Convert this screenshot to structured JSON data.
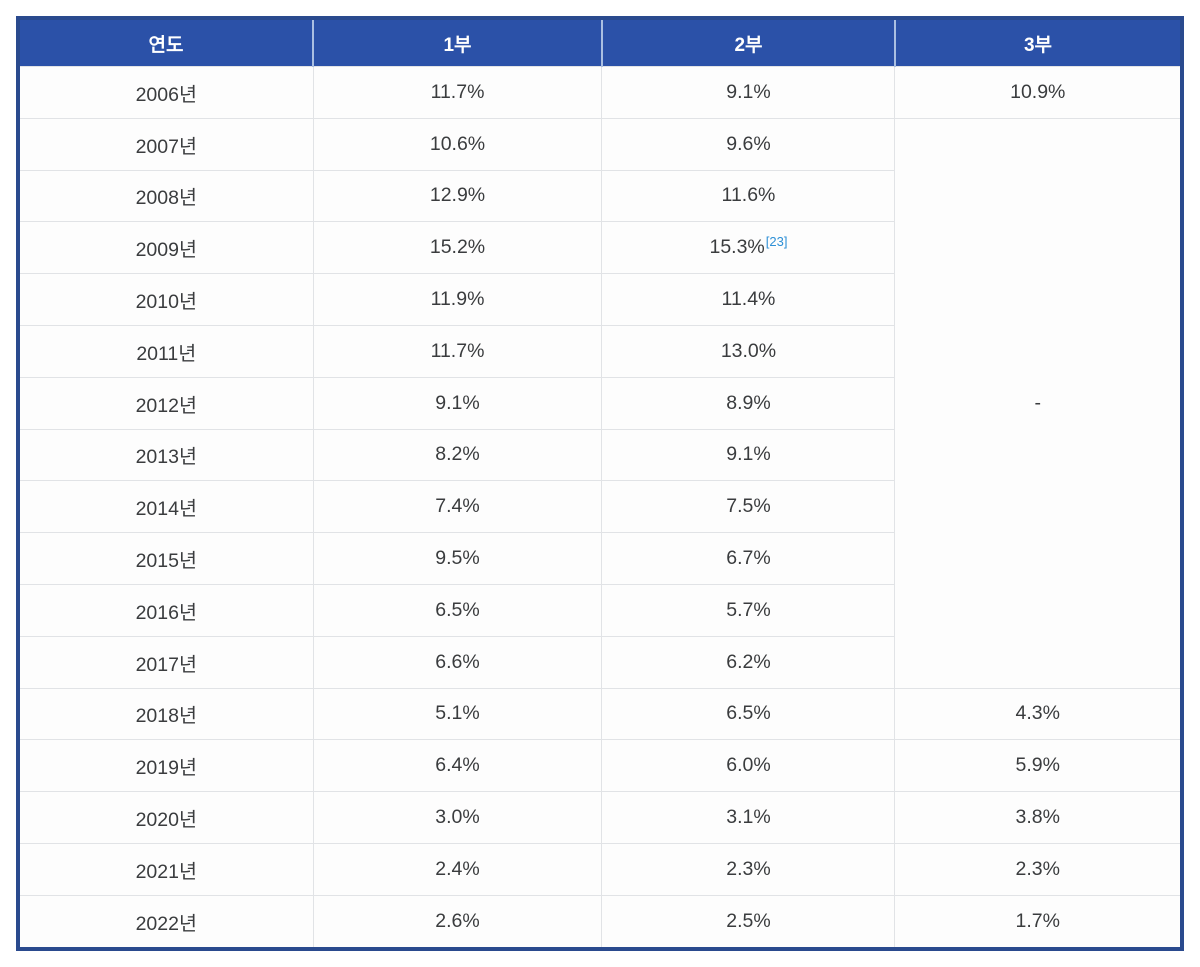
{
  "table": {
    "columns": [
      {
        "key": "year",
        "label": "연도"
      },
      {
        "key": "league1",
        "label": "1부"
      },
      {
        "key": "league2",
        "label": "2부"
      },
      {
        "key": "league3",
        "label": "3부"
      }
    ],
    "rows": [
      {
        "year": "2006년",
        "league1": "11.7%",
        "league2": "9.1%",
        "league3": "10.9%"
      },
      {
        "year": "2007년",
        "league1": "10.6%",
        "league2": "9.6%"
      },
      {
        "year": "2008년",
        "league1": "12.9%",
        "league2": "11.6%"
      },
      {
        "year": "2009년",
        "league1": "15.2%",
        "league2": "15.3%",
        "league2_footnote": "[23]"
      },
      {
        "year": "2010년",
        "league1": "11.9%",
        "league2": "11.4%"
      },
      {
        "year": "2011년",
        "league1": "11.7%",
        "league2": "13.0%"
      },
      {
        "year": "2012년",
        "league1": "9.1%",
        "league2": "8.9%"
      },
      {
        "year": "2013년",
        "league1": "8.2%",
        "league2": "9.1%"
      },
      {
        "year": "2014년",
        "league1": "7.4%",
        "league2": "7.5%"
      },
      {
        "year": "2015년",
        "league1": "9.5%",
        "league2": "6.7%"
      },
      {
        "year": "2016년",
        "league1": "6.5%",
        "league2": "5.7%"
      },
      {
        "year": "2017년",
        "league1": "6.6%",
        "league2": "6.2%"
      },
      {
        "year": "2018년",
        "league1": "5.1%",
        "league2": "6.5%",
        "league3": "4.3%"
      },
      {
        "year": "2019년",
        "league1": "6.4%",
        "league2": "6.0%",
        "league3": "5.9%"
      },
      {
        "year": "2020년",
        "league1": "3.0%",
        "league2": "3.1%",
        "league3": "3.8%"
      },
      {
        "year": "2021년",
        "league1": "2.4%",
        "league2": "2.3%",
        "league3": "2.3%"
      },
      {
        "year": "2022년",
        "league1": "2.6%",
        "league2": "2.5%",
        "league3": "1.7%"
      }
    ],
    "merged": {
      "column": "league3",
      "start_row_index": 1,
      "rowspan": 11,
      "value": "-"
    },
    "colors": {
      "header_bg": "#2b51a8",
      "header_text": "#ffffff",
      "header_divider": "#aabfe2",
      "outer_border": "#2a4a8e",
      "grid_line": "#e1e3e6",
      "cell_bg": "#fdfdfd",
      "body_text": "#3a3c3e",
      "footnote_link": "#2e90d6"
    }
  },
  "chart_data": {
    "type": "table",
    "title": "",
    "categories": [
      "2006",
      "2007",
      "2008",
      "2009",
      "2010",
      "2011",
      "2012",
      "2013",
      "2014",
      "2015",
      "2016",
      "2017",
      "2018",
      "2019",
      "2020",
      "2021",
      "2022"
    ],
    "series": [
      {
        "name": "1부",
        "values": [
          11.7,
          10.6,
          12.9,
          15.2,
          11.9,
          11.7,
          9.1,
          8.2,
          7.4,
          9.5,
          6.5,
          6.6,
          5.1,
          6.4,
          3.0,
          2.4,
          2.6
        ]
      },
      {
        "name": "2부",
        "values": [
          9.1,
          9.6,
          11.6,
          15.3,
          11.4,
          13.0,
          8.9,
          9.1,
          7.5,
          6.7,
          5.7,
          6.2,
          6.5,
          6.0,
          3.1,
          2.3,
          2.5
        ]
      },
      {
        "name": "3부",
        "values": [
          10.9,
          null,
          null,
          null,
          null,
          null,
          null,
          null,
          null,
          null,
          null,
          null,
          4.3,
          5.9,
          3.8,
          2.3,
          1.7
        ]
      }
    ]
  }
}
